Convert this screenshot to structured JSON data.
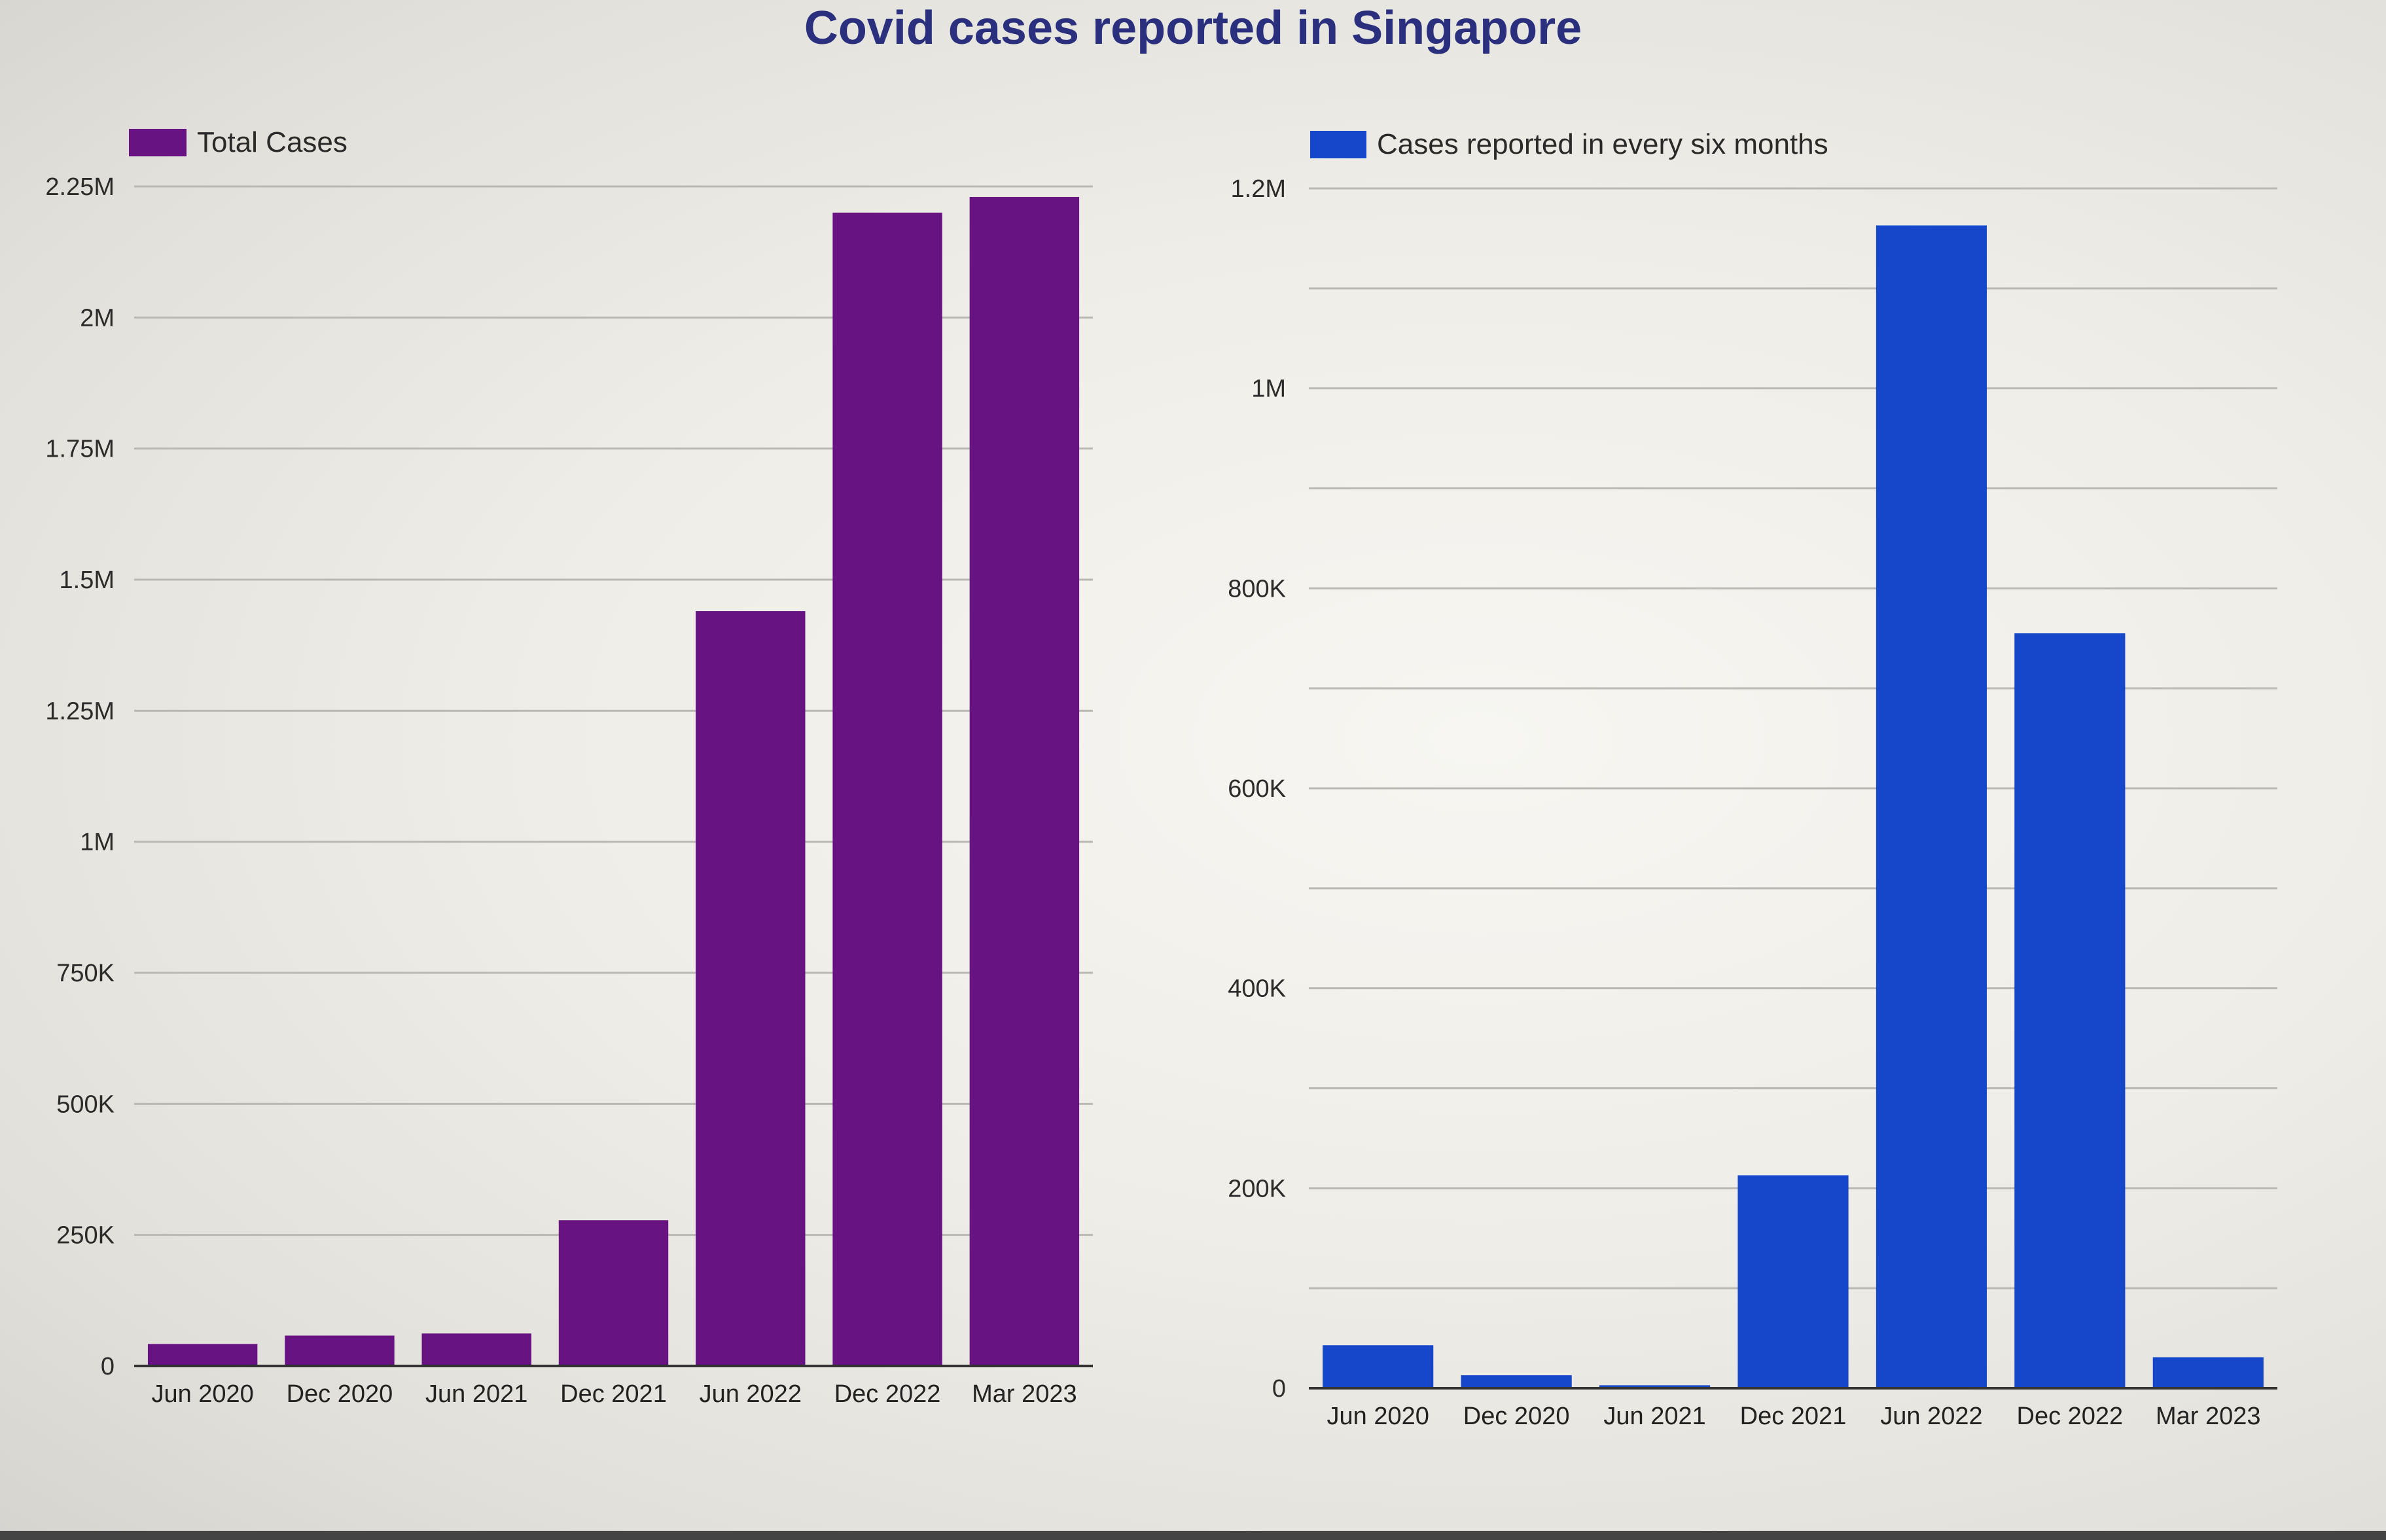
{
  "title": "Covid cases reported in Singapore",
  "chart_data": [
    {
      "type": "bar",
      "categories": [
        "Jun 2020",
        "Dec 2020",
        "Jun 2021",
        "Dec 2021",
        "Jun 2022",
        "Dec 2022",
        "Mar 2023"
      ],
      "series": [
        {
          "name": "Total Cases",
          "values": [
            42000,
            58000,
            62000,
            278000,
            1440000,
            2200000,
            2230000
          ],
          "color": "#671482"
        }
      ],
      "yticks": [
        "0",
        "250K",
        "500K",
        "750K",
        "1M",
        "1.25M",
        "1.5M",
        "1.75M",
        "2M",
        "2.25M"
      ],
      "ylim": [
        0,
        2250000
      ],
      "grid": true,
      "legend": "top-left"
    },
    {
      "type": "bar",
      "categories": [
        "Jun 2020",
        "Dec 2020",
        "Jun 2021",
        "Dec 2021",
        "Jun 2022",
        "Dec 2022",
        "Mar 2023"
      ],
      "series": [
        {
          "name": "Cases reported in every six months",
          "values": [
            43000,
            13000,
            3000,
            213000,
            1163000,
            755000,
            31000
          ],
          "color": "#1646c9"
        }
      ],
      "yticks": [
        "0",
        "200K",
        "400K",
        "600K",
        "800K",
        "1M",
        "1.2M"
      ],
      "ylim": [
        0,
        1200000
      ],
      "grid": true,
      "legend": "top-left"
    }
  ]
}
